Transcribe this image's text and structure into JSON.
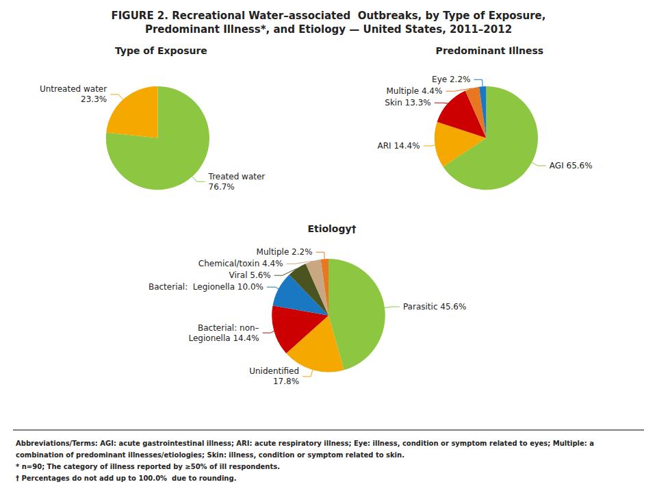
{
  "title": "FIGURE 2. Recreational Water–associated  Outbreaks, by Type of Exposure,\nPredominant Illness*, and Etiology — United States, 2011–2012",
  "annotations": [
    "Abbreviations/Terms:",
    " AGI: acute gastrointestinal illness; ARI: acute respiratory illness; Eye: illness, condition or symptom related to eyes; Multiple: a",
    "combination of predominant illnesses/etiologies; Skin: illness, condition or symptom related to skin.",
    "* n=90; The category of illness reported by ≥50% of ill respondents.",
    "† Percentages do not add up to 100.0%  due to rounding."
  ],
  "chart_data": [
    {
      "type": "pie",
      "title": "Type of Exposure",
      "categories": [
        "Treated water\n76.7%",
        "Untreated water\n23.3%"
      ],
      "values": [
        76.7,
        23.3
      ],
      "colors": [
        "#8DC641",
        "#F5A800"
      ]
    },
    {
      "type": "pie",
      "title": "Predominant Illness",
      "categories": [
        "AGI 65.6%",
        "ARI 14.4%",
        "Skin 13.3%",
        "Multiple 4.4%",
        "Eye 2.2%"
      ],
      "values": [
        65.6,
        14.4,
        13.3,
        4.4,
        2.2
      ],
      "colors": [
        "#8DC641",
        "#F5A800",
        "#CC0000",
        "#E87722",
        "#1A78C2"
      ]
    },
    {
      "type": "pie",
      "title": "Etiology†",
      "categories": [
        "Parasitic 45.6%",
        "Unidentified\n17.8%",
        "Bacterial: non–\nLegionella 14.4%",
        "Bacterial:  Legionella 10.0%",
        "Viral 5.6%",
        "Chemical/toxin 4.4%",
        "Multiple 2.2%"
      ],
      "values": [
        45.6,
        17.8,
        14.4,
        10.0,
        5.6,
        4.4,
        2.2
      ],
      "colors": [
        "#8DC641",
        "#F5A800",
        "#CC0000",
        "#1A78C2",
        "#4B5320",
        "#C8A882",
        "#E87722"
      ]
    }
  ]
}
